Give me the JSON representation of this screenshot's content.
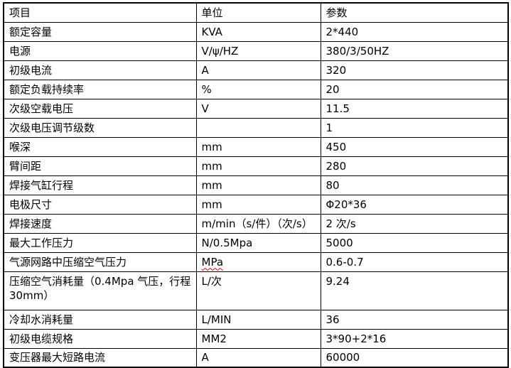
{
  "colors": {
    "background": "#ffffff",
    "text": "#000000",
    "border": "#000000",
    "spellcheck_squiggle": "#e00000"
  },
  "table": {
    "columns": [
      "项目",
      "单位",
      "参数"
    ],
    "rows": [
      {
        "item": "额定容量",
        "unit": "KVA",
        "param": "2*440"
      },
      {
        "item": "电源",
        "unit": "V/ψ/HZ",
        "param": "380/3/50HZ"
      },
      {
        "item": "初级电流",
        "unit": "A",
        "param": "320"
      },
      {
        "item": "额定负载持续率",
        "unit": "%",
        "param": "20"
      },
      {
        "item": "次级空载电压",
        "unit": "V",
        "param": "11.5"
      },
      {
        "item": "次级电压调节级数",
        "unit": "",
        "param": "1"
      },
      {
        "item": "喉深",
        "unit": "mm",
        "param": "450"
      },
      {
        "item": "臂间距",
        "unit": "mm",
        "param": "280"
      },
      {
        "item": "焊接气缸行程",
        "unit": "mm",
        "param": "80"
      },
      {
        "item": "电极尺寸",
        "unit": "mm",
        "param": "Φ20*36"
      },
      {
        "item": "焊接速度",
        "unit": "m/min（s/件）（次/s）",
        "param": "2 次/s"
      },
      {
        "item": "最大工作压力",
        "unit": "N/0.5Mpa",
        "param": "5000"
      },
      {
        "item": "气源网路中压缩空气压力",
        "unit": "MPa",
        "param": "0.6-0.7",
        "unit_squiggle": true
      },
      {
        "item": "压缩空气消耗量（0.4Mpa 气压，行程 30mm）",
        "unit": "L/次",
        "param": "9.24",
        "tall": true
      },
      {
        "item": "冷却水消耗量",
        "unit": "L/MIN",
        "param": "36"
      },
      {
        "item": "初级电缆规格",
        "unit": "MM2",
        "param": "3*90+2*16"
      },
      {
        "item": "变压器最大短路电流",
        "unit": "A",
        "param": "60000"
      }
    ]
  }
}
